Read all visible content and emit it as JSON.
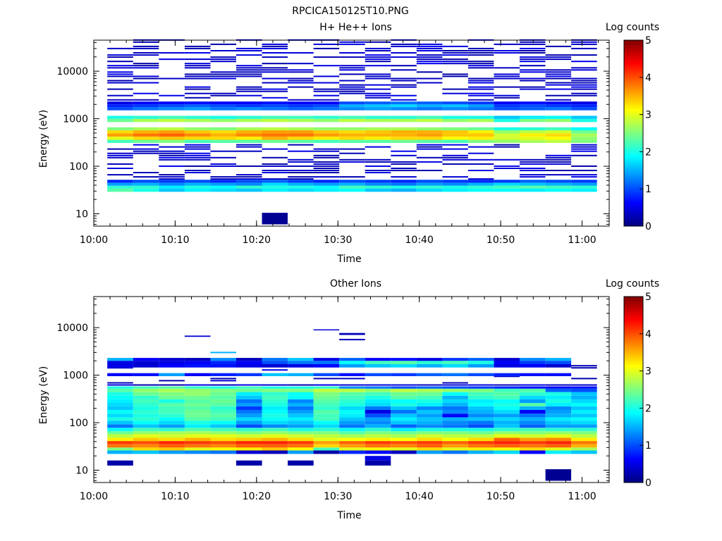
{
  "figure_title": "RPCICA150125T10.PNG",
  "colorscale": [
    "#00007f",
    "#0000ff",
    "#007fff",
    "#00ffff",
    "#7fff7f",
    "#ffff00",
    "#ff7f00",
    "#ff0000",
    "#7f0000"
  ],
  "chart_data": [
    {
      "type": "heatmap",
      "title": "H+ He++ Ions",
      "xlabel": "Time",
      "ylabel": "Energy (eV)",
      "y_scale": "log",
      "ylim": [
        5.5,
        45000
      ],
      "x_ticks": [
        "10:00",
        "10:10",
        "10:20",
        "10:30",
        "10:40",
        "10:50",
        "11:00"
      ],
      "y_ticks": [
        "10",
        "100",
        "1000",
        "10000"
      ],
      "colorbar_label": "Log counts",
      "colorbar_ticks": [
        "0",
        "1",
        "2",
        "3",
        "4",
        "5"
      ],
      "colorbar_range": [
        0,
        5
      ],
      "time_bins_start": [
        "10:01:40",
        "10:04:50",
        "10:08:00",
        "10:11:10",
        "10:14:20",
        "10:17:30",
        "10:20:40",
        "10:23:50",
        "10:27:00",
        "10:30:10",
        "10:33:20",
        "10:36:30",
        "10:39:40",
        "10:42:50",
        "10:46:00",
        "10:49:10",
        "10:52:20",
        "10:55:30",
        "10:58:40"
      ],
      "rows": [
        {
          "e_low": 29,
          "e_high": 34,
          "values": [
            2.3,
            2.0,
            1.6,
            1.8,
            1.7,
            1.6,
            1.8,
            1.7,
            1.8,
            1.9,
            1.6,
            1.5,
            1.7,
            1.8,
            1.9,
            1.9,
            1.8,
            1.9,
            1.8
          ]
        },
        {
          "e_low": 34,
          "e_high": 39,
          "values": [
            2.1,
            2.1,
            1.8,
            2.0,
            1.9,
            2.1,
            2.0,
            2.0,
            1.9,
            2.2,
            2.1,
            2.0,
            2.1,
            2.0,
            2.1,
            2.2,
            2.3,
            2.2,
            2.1
          ]
        },
        {
          "e_low": 39,
          "e_high": 45,
          "values": [
            1.4,
            1.5,
            1.3,
            1.5,
            1.4,
            1.3,
            1.7,
            1.5,
            1.4,
            1.5,
            1.3,
            1.2,
            1.4,
            1.3,
            1.5,
            1.7,
            1.6,
            1.5,
            1.4
          ]
        },
        {
          "e_low": 45,
          "e_high": 52,
          "values": [
            0.8,
            1.0,
            0.9,
            1.0,
            0.8,
            1.0,
            1.1,
            0.9,
            0.8,
            1.0,
            0.9,
            0.8,
            1.0,
            0.9,
            0.8,
            0.9,
            1.1,
            1.0,
            0.9
          ]
        },
        {
          "e_low": 310,
          "e_high": 360,
          "values": [
            2.2,
            2.4,
            2.5,
            2.2,
            2.3,
            2.3,
            2.4,
            2.3,
            2.2,
            2.3,
            2.3,
            2.4,
            2.3,
            2.2,
            2.5,
            2.6,
            2.7,
            2.8,
            2.5
          ]
        },
        {
          "e_low": 360,
          "e_high": 420,
          "values": [
            3.0,
            3.3,
            3.4,
            3.3,
            3.3,
            3.2,
            3.5,
            3.3,
            3.2,
            3.3,
            3.2,
            3.3,
            3.3,
            3.1,
            3.2,
            2.9,
            3.0,
            3.1,
            2.6
          ]
        },
        {
          "e_low": 420,
          "e_high": 490,
          "values": [
            3.6,
            3.8,
            3.9,
            3.7,
            3.5,
            3.7,
            3.8,
            3.8,
            3.6,
            3.5,
            3.5,
            3.5,
            3.6,
            3.4,
            3.4,
            2.9,
            3.2,
            3.3,
            2.7
          ]
        },
        {
          "e_low": 490,
          "e_high": 570,
          "values": [
            3.3,
            3.5,
            3.6,
            3.4,
            3.3,
            3.5,
            3.6,
            3.6,
            3.4,
            3.3,
            3.4,
            3.5,
            3.5,
            3.4,
            3.2,
            2.6,
            2.8,
            2.9,
            2.4
          ]
        },
        {
          "e_low": 570,
          "e_high": 660,
          "values": [
            2.5,
            2.7,
            2.8,
            2.6,
            2.5,
            2.7,
            2.8,
            2.7,
            2.6,
            2.6,
            2.7,
            2.7,
            2.6,
            2.5,
            2.4,
            2.0,
            2.1,
            2.2,
            1.9
          ]
        },
        {
          "e_low": 850,
          "e_high": 990,
          "values": [
            2.4,
            2.7,
            2.8,
            2.7,
            2.6,
            2.7,
            2.8,
            2.7,
            2.6,
            2.8,
            2.7,
            2.7,
            2.8,
            2.6,
            2.7,
            2.0,
            2.5,
            2.6,
            2.0
          ]
        },
        {
          "e_low": 990,
          "e_high": 1150,
          "values": [
            2.0,
            2.1,
            2.2,
            2.1,
            2.0,
            2.1,
            2.2,
            2.2,
            2.1,
            2.2,
            2.1,
            2.1,
            2.2,
            2.0,
            2.0,
            1.6,
            1.8,
            1.9,
            1.6
          ]
        },
        {
          "e_low": 1500,
          "e_high": 1750,
          "values": [
            1.0,
            1.2,
            1.3,
            1.4,
            1.2,
            1.3,
            1.2,
            1.1,
            1.2,
            1.3,
            1.4,
            1.3,
            1.2,
            1.3,
            1.2,
            1.0,
            1.1,
            1.2,
            1.0
          ]
        },
        {
          "e_low": 1750,
          "e_high": 2000,
          "values": [
            0.8,
            0.9,
            1.0,
            1.1,
            1.0,
            0.9,
            1.0,
            0.9,
            1.0,
            1.5,
            1.6,
            1.7,
            1.5,
            1.6,
            1.4,
            0.9,
            1.0,
            0.9,
            0.8
          ]
        },
        {
          "e_low": 2000,
          "e_high": 2300,
          "values": [
            0.5,
            0.6,
            0.6,
            0.7,
            0.6,
            0.6,
            0.7,
            0.6,
            0.6,
            1.0,
            1.1,
            1.2,
            1.1,
            1.0,
            0.9,
            0.6,
            0.7,
            0.6,
            0.5
          ]
        }
      ],
      "sparse_value": 0.2,
      "isolated_low_cells": [
        {
          "bin": 6,
          "e_low": 6,
          "e_high": 10.5,
          "value": 0.1
        }
      ]
    },
    {
      "type": "heatmap",
      "title": "Other Ions",
      "xlabel": "Time",
      "ylabel": "Energy (eV)",
      "y_scale": "log",
      "ylim": [
        5.5,
        45000
      ],
      "x_ticks": [
        "10:00",
        "10:10",
        "10:20",
        "10:30",
        "10:40",
        "10:50",
        "11:00"
      ],
      "y_ticks": [
        "10",
        "100",
        "1000",
        "10000"
      ],
      "colorbar_label": "Log counts",
      "colorbar_ticks": [
        "0",
        "1",
        "2",
        "3",
        "4",
        "5"
      ],
      "colorbar_range": [
        0,
        5
      ],
      "time_bins_start": [
        "10:01:40",
        "10:04:50",
        "10:08:00",
        "10:11:10",
        "10:14:20",
        "10:17:30",
        "10:20:40",
        "10:23:50",
        "10:27:00",
        "10:30:10",
        "10:33:20",
        "10:36:30",
        "10:39:40",
        "10:42:50",
        "10:46:00",
        "10:49:10",
        "10:52:20",
        "10:55:30",
        "10:58:40"
      ],
      "rows": [
        {
          "e_low": 22,
          "e_high": 26,
          "values": [
            1.5,
            1.6,
            1.4,
            1.3,
            1.2,
            0.4,
            0.3,
            1.4,
            0.2,
            0.8,
            0.6,
            0.3,
            1.4,
            1.2,
            1.5,
            1.7,
            0.6,
            1.8,
            1.6
          ]
        },
        {
          "e_low": 26,
          "e_high": 30,
          "values": [
            2.5,
            3.3,
            3.4,
            3.0,
            3.1,
            3.2,
            3.4,
            3.1,
            2.2,
            3.0,
            3.1,
            3.0,
            3.3,
            3.0,
            3.2,
            3.1,
            3.3,
            3.0,
            2.7
          ]
        },
        {
          "e_low": 30,
          "e_high": 35,
          "values": [
            3.8,
            3.7,
            3.9,
            3.8,
            3.7,
            3.9,
            3.9,
            3.8,
            3.3,
            3.6,
            3.8,
            3.7,
            3.9,
            3.6,
            3.8,
            3.9,
            3.8,
            3.9,
            3.5
          ]
        },
        {
          "e_low": 35,
          "e_high": 41,
          "values": [
            4.1,
            4.0,
            4.2,
            4.1,
            4.0,
            4.2,
            4.2,
            4.1,
            3.6,
            3.9,
            4.1,
            4.0,
            4.1,
            3.9,
            4.1,
            4.2,
            4.1,
            4.2,
            3.8
          ]
        },
        {
          "e_low": 41,
          "e_high": 48,
          "values": [
            3.2,
            3.4,
            3.3,
            3.5,
            3.3,
            3.4,
            3.5,
            3.3,
            3.0,
            3.1,
            3.2,
            3.1,
            3.3,
            3.1,
            3.3,
            3.9,
            3.6,
            3.7,
            3.2
          ]
        },
        {
          "e_low": 48,
          "e_high": 57,
          "values": [
            2.8,
            3.0,
            2.9,
            3.0,
            3.0,
            2.9,
            3.0,
            2.9,
            2.8,
            2.7,
            2.8,
            2.7,
            2.9,
            2.8,
            2.8,
            3.0,
            2.9,
            3.0,
            2.8
          ]
        },
        {
          "e_low": 57,
          "e_high": 66,
          "values": [
            2.4,
            2.6,
            2.7,
            2.7,
            2.6,
            2.5,
            2.6,
            2.5,
            2.5,
            2.3,
            2.5,
            2.4,
            2.5,
            2.5,
            2.4,
            2.6,
            2.5,
            2.6,
            2.5
          ]
        },
        {
          "e_low": 66,
          "e_high": 78,
          "values": [
            1.9,
            2.2,
            2.1,
            2.3,
            2.2,
            2.1,
            2.2,
            2.0,
            2.1,
            1.9,
            2.1,
            1.8,
            2.0,
            2.0,
            2.0,
            2.1,
            2.2,
            2.1,
            2.1
          ]
        },
        {
          "e_low": 78,
          "e_high": 92,
          "values": [
            1.2,
            1.6,
            1.4,
            1.8,
            1.6,
            1.0,
            1.3,
            1.4,
            1.7,
            1.2,
            1.5,
            1.1,
            1.3,
            1.2,
            1.0,
            1.6,
            1.1,
            1.4,
            1.4
          ]
        },
        {
          "e_low": 92,
          "e_high": 110,
          "values": [
            1.6,
            1.9,
            1.7,
            2.0,
            1.9,
            1.4,
            1.7,
            1.6,
            1.9,
            1.4,
            1.3,
            1.6,
            1.5,
            1.3,
            1.2,
            1.5,
            1.3,
            1.6,
            1.7
          ]
        },
        {
          "e_low": 110,
          "e_high": 130,
          "values": [
            2.0,
            2.1,
            1.9,
            2.3,
            2.2,
            1.7,
            1.9,
            1.8,
            2.2,
            1.6,
            1.4,
            1.8,
            1.6,
            1.5,
            1.6,
            1.7,
            1.5,
            1.8,
            1.9
          ]
        },
        {
          "e_low": 130,
          "e_high": 155,
          "values": [
            1.7,
            2.0,
            2.1,
            2.4,
            2.3,
            1.4,
            2.0,
            1.6,
            2.2,
            1.8,
            1.0,
            1.6,
            1.4,
            0.6,
            1.3,
            1.4,
            1.2,
            1.5,
            1.6
          ]
        },
        {
          "e_low": 155,
          "e_high": 185,
          "values": [
            1.9,
            2.1,
            2.2,
            2.4,
            2.2,
            1.2,
            1.9,
            1.4,
            2.3,
            1.9,
            0.5,
            1.2,
            1.6,
            1.3,
            1.5,
            1.7,
            0.6,
            1.4,
            1.8
          ]
        },
        {
          "e_low": 185,
          "e_high": 220,
          "values": [
            1.6,
            2.0,
            2.2,
            2.3,
            2.1,
            0.9,
            1.8,
            1.2,
            2.1,
            1.7,
            1.2,
            1.6,
            1.3,
            1.2,
            1.6,
            1.9,
            1.5,
            1.3,
            1.6
          ]
        },
        {
          "e_low": 220,
          "e_high": 260,
          "values": [
            1.7,
            2.1,
            2.3,
            2.4,
            2.3,
            1.4,
            2.0,
            1.5,
            2.2,
            2.0,
            1.7,
            2.0,
            1.8,
            1.5,
            1.9,
            2.0,
            2.3,
            1.8,
            1.9
          ]
        },
        {
          "e_low": 260,
          "e_high": 310,
          "values": [
            1.8,
            2.2,
            2.0,
            2.3,
            2.4,
            1.2,
            2.1,
            1.3,
            2.3,
            2.1,
            1.8,
            1.9,
            2.0,
            1.7,
            1.8,
            1.9,
            1.4,
            2.0,
            1.7
          ]
        },
        {
          "e_low": 310,
          "e_high": 370,
          "values": [
            1.9,
            2.1,
            2.4,
            2.4,
            2.3,
            1.6,
            2.2,
            1.9,
            2.4,
            2.2,
            2.0,
            2.3,
            2.2,
            1.5,
            2.1,
            2.2,
            1.7,
            1.8,
            1.5
          ]
        },
        {
          "e_low": 370,
          "e_high": 440,
          "values": [
            2.0,
            2.4,
            2.5,
            2.6,
            2.4,
            1.8,
            2.1,
            1.9,
            2.5,
            2.3,
            2.2,
            2.4,
            2.4,
            1.9,
            2.2,
            2.3,
            2.1,
            2.0,
            1.6
          ]
        },
        {
          "e_low": 440,
          "e_high": 520,
          "values": [
            2.3,
            2.6,
            2.7,
            2.6,
            2.5,
            2.4,
            2.5,
            2.5,
            2.8,
            2.8,
            2.6,
            2.8,
            2.7,
            2.6,
            2.5,
            2.2,
            2.3,
            1.1,
            1.0
          ]
        },
        {
          "e_low": 520,
          "e_high": 580,
          "values": [
            2.0,
            2.2,
            2.3,
            2.1,
            2.0,
            2.2,
            2.0,
            2.0,
            2.1,
            1.3,
            1.2,
            1.0,
            1.1,
            1.0,
            0.9,
            0.8,
            0.7,
            0.6,
            0.7
          ]
        },
        {
          "e_low": 950,
          "e_high": 1100,
          "values": [
            0.6,
            0.7,
            1.4,
            0.6,
            0.8,
            0.9,
            1.6,
            1.5,
            1.0,
            0.7,
            1.0,
            0.9,
            1.1,
            1.2,
            1.0,
            0.8,
            0.7,
            0.7,
            0.0
          ]
        },
        {
          "e_low": 1450,
          "e_high": 1700,
          "values": [
            0.5,
            0.4,
            0.6,
            0.7,
            0.7,
            0.5,
            0.4,
            0.5,
            0.6,
            1.4,
            1.6,
            1.7,
            1.5,
            1.7,
            1.4,
            0.5,
            0.6,
            0.4,
            0.0
          ]
        },
        {
          "e_low": 1700,
          "e_high": 2000,
          "values": [
            0.5,
            0.4,
            0.5,
            0.6,
            0.8,
            0.6,
            1.0,
            1.2,
            1.2,
            1.9,
            2.2,
            2.3,
            2.1,
            2.2,
            2.0,
            0.6,
            0.9,
            1.0,
            0.0
          ]
        },
        {
          "e_low": 2000,
          "e_high": 2300,
          "values": [
            1.5,
            0.6,
            0.4,
            0.3,
            1.3,
            0.3,
            1.2,
            1.6,
            0.5,
            1.1,
            0.6,
            0.7,
            0.5,
            0.9,
            1.1,
            0.4,
            1.3,
            1.5,
            0.0
          ]
        }
      ],
      "sparse_value": 0.2,
      "isolated_low_cells": [
        {
          "bin": 0,
          "e_low": 12.5,
          "e_high": 16,
          "value": 0.2
        },
        {
          "bin": 5,
          "e_low": 12.5,
          "e_high": 16,
          "value": 0.2
        },
        {
          "bin": 7,
          "e_low": 12.5,
          "e_high": 16,
          "value": 0.2
        },
        {
          "bin": 10,
          "e_low": 12.5,
          "e_high": 16,
          "value": 0.2
        },
        {
          "bin": 10,
          "e_low": 16,
          "e_high": 20,
          "value": 0.5
        },
        {
          "bin": 17,
          "e_low": 6,
          "e_high": 10.5,
          "value": 0.1
        }
      ]
    }
  ]
}
